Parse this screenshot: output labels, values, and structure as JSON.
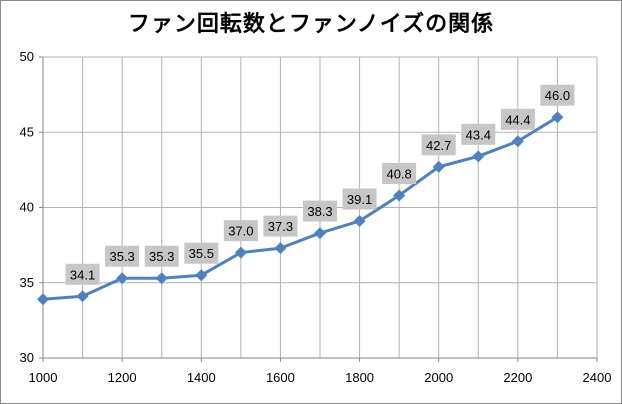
{
  "chart_data": {
    "type": "line",
    "title": "ファン回転数とファンノイズの関係",
    "x": [
      1000,
      1100,
      1200,
      1300,
      1400,
      1500,
      1600,
      1700,
      1800,
      1900,
      2000,
      2100,
      2200,
      2300
    ],
    "series": [
      {
        "values": [
          33.9,
          34.1,
          35.3,
          35.3,
          35.5,
          37.0,
          37.3,
          38.3,
          39.1,
          40.8,
          42.7,
          43.4,
          44.4,
          46.0
        ],
        "labels": [
          null,
          "34.1",
          "35.3",
          "35.3",
          "35.5",
          "37.0",
          "37.3",
          "38.3",
          "39.1",
          "40.8",
          "42.7",
          "43.4",
          "44.4",
          "46.0"
        ],
        "color": "#4f81bd"
      }
    ],
    "xlim": [
      1000,
      2400
    ],
    "ylim": [
      30,
      50
    ],
    "xticks": [
      1000,
      1200,
      1400,
      1600,
      1800,
      2000,
      2200,
      2400
    ],
    "yticks": [
      30,
      35,
      40,
      45,
      50
    ],
    "grid": true,
    "gridColor": "#b3b3b3",
    "labelBoxColor": "#c6c6c6"
  }
}
